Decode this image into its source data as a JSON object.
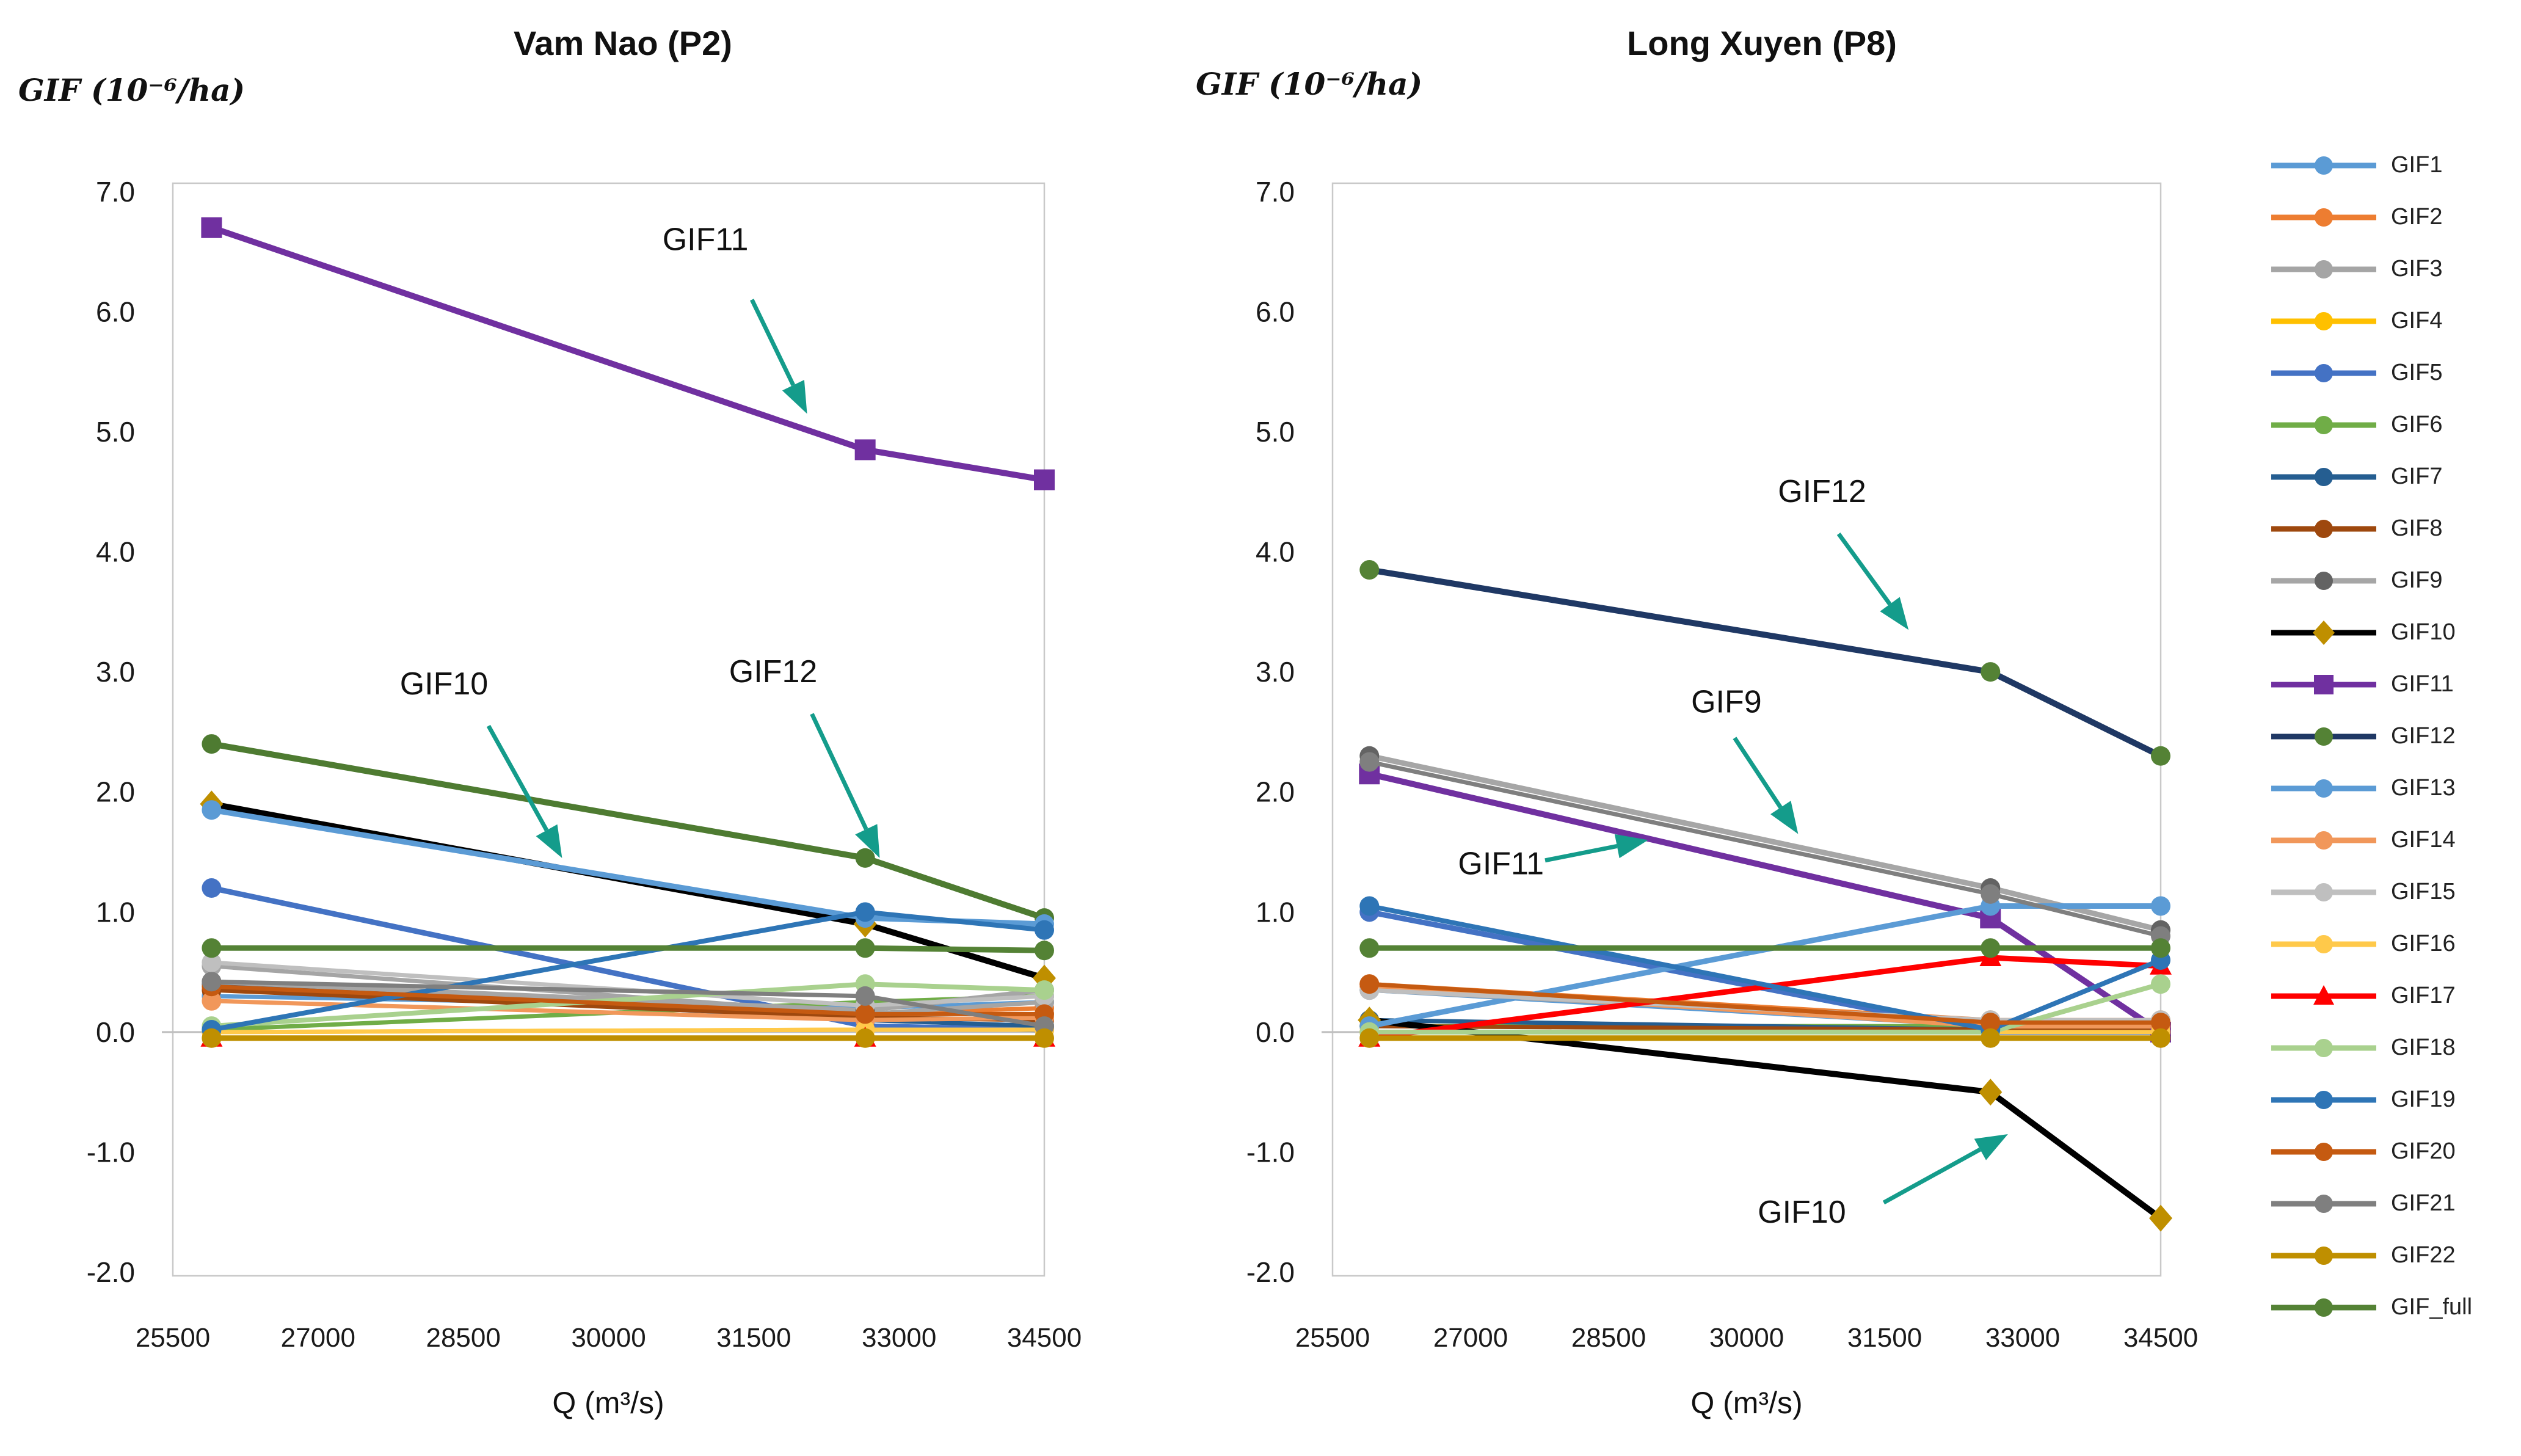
{
  "page": {
    "background": "#ffffff"
  },
  "annotation_color": "#149c8b",
  "legend": {
    "items": [
      {
        "label": "GIF1",
        "line": "#5B9BD5",
        "marker": "circle",
        "marker_color": "#5B9BD5"
      },
      {
        "label": "GIF2",
        "line": "#ED7D31",
        "marker": "circle",
        "marker_color": "#ED7D31"
      },
      {
        "label": "GIF3",
        "line": "#A5A5A5",
        "marker": "circle",
        "marker_color": "#A5A5A5"
      },
      {
        "label": "GIF4",
        "line": "#FFC000",
        "marker": "circle",
        "marker_color": "#FFC000"
      },
      {
        "label": "GIF5",
        "line": "#4472C4",
        "marker": "circle",
        "marker_color": "#4472C4"
      },
      {
        "label": "GIF6",
        "line": "#70AD47",
        "marker": "circle",
        "marker_color": "#70AD47"
      },
      {
        "label": "GIF7",
        "line": "#255E91",
        "marker": "circle",
        "marker_color": "#255E91"
      },
      {
        "label": "GIF8",
        "line": "#9E480E",
        "marker": "circle",
        "marker_color": "#9E480E"
      },
      {
        "label": "GIF9",
        "line": "#A6A6A6",
        "marker": "circle",
        "marker_color": "#636363"
      },
      {
        "label": "GIF10",
        "line": "#000000",
        "marker": "diamond",
        "marker_color": "#BF8F00"
      },
      {
        "label": "GIF11",
        "line": "#7030A0",
        "marker": "square",
        "marker_color": "#7030A0"
      },
      {
        "label": "GIF12",
        "line": "#1F3864",
        "marker": "circle",
        "marker_color": "#548235"
      },
      {
        "label": "GIF13",
        "line": "#5B9BD5",
        "marker": "circle",
        "marker_color": "#5B9BD5"
      },
      {
        "label": "GIF14",
        "line": "#F1975A",
        "marker": "circle",
        "marker_color": "#F1975A"
      },
      {
        "label": "GIF15",
        "line": "#BFBFBF",
        "marker": "circle",
        "marker_color": "#BFBFBF"
      },
      {
        "label": "GIF16",
        "line": "#FFC94A",
        "marker": "circle",
        "marker_color": "#FFC94A"
      },
      {
        "label": "GIF17",
        "line": "#FF0000",
        "marker": "triangle",
        "marker_color": "#FF0000"
      },
      {
        "label": "GIF18",
        "line": "#A9D18E",
        "marker": "circle",
        "marker_color": "#A9D18E"
      },
      {
        "label": "GIF19",
        "line": "#2E75B6",
        "marker": "circle",
        "marker_color": "#2E75B6"
      },
      {
        "label": "GIF20",
        "line": "#C55A11",
        "marker": "circle",
        "marker_color": "#C55A11"
      },
      {
        "label": "GIF21",
        "line": "#7F7F7F",
        "marker": "circle",
        "marker_color": "#7F7F7F"
      },
      {
        "label": "GIF22",
        "line": "#BF8F00",
        "marker": "circle",
        "marker_color": "#BF8F00"
      },
      {
        "label": "GIF_full",
        "line": "#548235",
        "marker": "circle",
        "marker_color": "#548235"
      }
    ]
  },
  "chart_data": [
    {
      "type": "line",
      "title": "Vam Nao (P2)",
      "ylabel_unit": "GIF (10⁻⁶/ha)",
      "xlabel": "Q (m³/s)",
      "xlim": [
        25500,
        34500
      ],
      "ylim": [
        -2.0,
        7.0
      ],
      "x_ticks": [
        25500,
        27000,
        28500,
        30000,
        31500,
        33000,
        34500
      ],
      "y_ticks": [
        "7.0",
        "6.0",
        "5.0",
        "4.0",
        "3.0",
        "2.0",
        "1.0",
        "0.0",
        "-1.0",
        "-2.0"
      ],
      "x": [
        25900,
        32650,
        34500
      ],
      "series": [
        {
          "name": "GIF1",
          "color": "#5B9BD5",
          "marker": "circle",
          "marker_color": "#5B9BD5",
          "width": 7,
          "values": [
            0.3,
            0.2,
            0.25
          ]
        },
        {
          "name": "GIF2",
          "color": "#ED7D31",
          "marker": "circle",
          "marker_color": "#ED7D31",
          "width": 7,
          "values": [
            0.4,
            0.15,
            0.2
          ]
        },
        {
          "name": "GIF3",
          "color": "#A5A5A5",
          "marker": "circle",
          "marker_color": "#A5A5A5",
          "width": 7,
          "values": [
            0.55,
            0.15,
            0.25
          ]
        },
        {
          "name": "GIF4",
          "color": "#FFC000",
          "marker": "circle",
          "marker_color": "#FFC000",
          "width": 7,
          "values": [
            0.0,
            0.02,
            0.02
          ]
        },
        {
          "name": "GIF5",
          "color": "#4472C4",
          "marker": "circle",
          "marker_color": "#4472C4",
          "width": 9,
          "values": [
            1.2,
            0.05,
            0.02
          ]
        },
        {
          "name": "GIF6",
          "color": "#70AD47",
          "marker": "circle",
          "marker_color": "#70AD47",
          "width": 7,
          "values": [
            0.02,
            0.25,
            0.3
          ]
        },
        {
          "name": "GIF7",
          "color": "#255E91",
          "marker": "circle",
          "marker_color": "#255E91",
          "width": 7,
          "values": [
            0.4,
            0.1,
            0.05
          ]
        },
        {
          "name": "GIF8",
          "color": "#9E480E",
          "marker": "circle",
          "marker_color": "#9E480E",
          "width": 7,
          "values": [
            0.35,
            0.12,
            0.1
          ]
        },
        {
          "name": "GIF9",
          "color": "#A6A6A6",
          "marker": "circle",
          "marker_color": "#636363",
          "width": 8,
          "values": [
            0.42,
            0.18,
            0.35
          ]
        },
        {
          "name": "GIF10",
          "color": "#000000",
          "marker": "diamond",
          "marker_color": "#BF8F00",
          "width": 10,
          "values": [
            1.9,
            0.9,
            0.45
          ]
        },
        {
          "name": "GIF11",
          "color": "#7030A0",
          "marker": "square",
          "marker_color": "#7030A0",
          "width": 10,
          "values": [
            6.7,
            4.85,
            4.6
          ]
        },
        {
          "name": "GIF12",
          "color": "#4E7B31",
          "marker": "circle",
          "marker_color": "#4E7B31",
          "width": 10,
          "values": [
            2.4,
            1.45,
            0.95
          ]
        },
        {
          "name": "GIF13",
          "color": "#5B9BD5",
          "marker": "circle",
          "marker_color": "#5B9BD5",
          "width": 9,
          "values": [
            1.85,
            0.95,
            0.9
          ]
        },
        {
          "name": "GIF14",
          "color": "#F1975A",
          "marker": "circle",
          "marker_color": "#F1975A",
          "width": 7,
          "values": [
            0.26,
            0.1,
            0.12
          ]
        },
        {
          "name": "GIF15",
          "color": "#BFBFBF",
          "marker": "circle",
          "marker_color": "#BFBFBF",
          "width": 7,
          "values": [
            0.58,
            0.22,
            0.3
          ]
        },
        {
          "name": "GIF16",
          "color": "#FFC94A",
          "marker": "circle",
          "marker_color": "#FFC94A",
          "width": 7,
          "values": [
            0.0,
            0.02,
            0.02
          ]
        },
        {
          "name": "GIF17",
          "color": "#FF0000",
          "marker": "triangle",
          "marker_color": "#FF0000",
          "width": 7,
          "values": [
            -0.05,
            -0.05,
            -0.05
          ]
        },
        {
          "name": "GIF18",
          "color": "#A9D18E",
          "marker": "circle",
          "marker_color": "#A9D18E",
          "width": 8,
          "values": [
            0.05,
            0.4,
            0.35
          ]
        },
        {
          "name": "GIF19",
          "color": "#2E75B6",
          "marker": "circle",
          "marker_color": "#2E75B6",
          "width": 8,
          "values": [
            0.02,
            1.0,
            0.85
          ]
        },
        {
          "name": "GIF20",
          "color": "#C55A11",
          "marker": "circle",
          "marker_color": "#C55A11",
          "width": 7,
          "values": [
            0.38,
            0.15,
            0.15
          ]
        },
        {
          "name": "GIF21",
          "color": "#7F7F7F",
          "marker": "circle",
          "marker_color": "#7F7F7F",
          "width": 7,
          "values": [
            0.42,
            0.3,
            0.05
          ]
        },
        {
          "name": "GIF22",
          "color": "#BF8F00",
          "marker": "circle",
          "marker_color": "#BF8F00",
          "width": 9,
          "values": [
            -0.05,
            -0.05,
            -0.05
          ]
        },
        {
          "name": "GIF_full",
          "color": "#548235",
          "marker": "circle",
          "marker_color": "#548235",
          "width": 9,
          "values": [
            0.7,
            0.7,
            0.68
          ]
        }
      ],
      "annotations": [
        {
          "text": "GIF11",
          "x": 31000,
          "y": 6.6,
          "arrow": {
            "x1": 31480,
            "y1": 6.1,
            "x2": 32050,
            "y2": 5.15
          }
        },
        {
          "text": "GIF10",
          "x": 28300,
          "y": 2.9,
          "arrow": {
            "x1": 28760,
            "y1": 2.55,
            "x2": 29520,
            "y2": 1.45
          }
        },
        {
          "text": "GIF12",
          "x": 31700,
          "y": 3.0,
          "arrow": {
            "x1": 32100,
            "y1": 2.65,
            "x2": 32800,
            "y2": 1.45
          }
        }
      ]
    },
    {
      "type": "line",
      "title": "Long Xuyen (P8)",
      "ylabel_unit": "GIF (10⁻⁶/ha)",
      "xlabel": "Q (m³/s)",
      "xlim": [
        25500,
        34500
      ],
      "ylim": [
        -2.0,
        7.0
      ],
      "x_ticks": [
        25500,
        27000,
        28500,
        30000,
        31500,
        33000,
        34500
      ],
      "y_ticks": [
        "7.0",
        "6.0",
        "5.0",
        "4.0",
        "3.0",
        "2.0",
        "1.0",
        "0.0",
        "-1.0",
        "-2.0"
      ],
      "x": [
        25900,
        32650,
        34500
      ],
      "series": [
        {
          "name": "GIF1",
          "color": "#5B9BD5",
          "marker": "circle",
          "marker_color": "#5B9BD5",
          "width": 7,
          "values": [
            0.35,
            0.05,
            0.05
          ]
        },
        {
          "name": "GIF2",
          "color": "#ED7D31",
          "marker": "circle",
          "marker_color": "#ED7D31",
          "width": 7,
          "values": [
            0.4,
            0.1,
            0.1
          ]
        },
        {
          "name": "GIF3",
          "color": "#A5A5A5",
          "marker": "circle",
          "marker_color": "#A5A5A5",
          "width": 7,
          "values": [
            0.35,
            0.08,
            0.08
          ]
        },
        {
          "name": "GIF4",
          "color": "#FFC000",
          "marker": "circle",
          "marker_color": "#FFC000",
          "width": 7,
          "values": [
            0.0,
            0.0,
            0.0
          ]
        },
        {
          "name": "GIF5",
          "color": "#4472C4",
          "marker": "circle",
          "marker_color": "#4472C4",
          "width": 9,
          "values": [
            1.0,
            0.0,
            0.0
          ]
        },
        {
          "name": "GIF6",
          "color": "#70AD47",
          "marker": "circle",
          "marker_color": "#70AD47",
          "width": 7,
          "values": [
            0.05,
            0.05,
            0.05
          ]
        },
        {
          "name": "GIF7",
          "color": "#255E91",
          "marker": "circle",
          "marker_color": "#255E91",
          "width": 7,
          "values": [
            0.1,
            0.02,
            0.02
          ]
        },
        {
          "name": "GIF8",
          "color": "#9E480E",
          "marker": "circle",
          "marker_color": "#9E480E",
          "width": 7,
          "values": [
            0.05,
            0.02,
            0.02
          ]
        },
        {
          "name": "GIF9",
          "color": "#A6A6A6",
          "marker": "circle",
          "marker_color": "#636363",
          "width": 9,
          "values": [
            2.3,
            1.2,
            0.85
          ]
        },
        {
          "name": "GIF10",
          "color": "#000000",
          "marker": "diamond",
          "marker_color": "#BF8F00",
          "width": 10,
          "values": [
            0.1,
            -0.5,
            -1.55
          ]
        },
        {
          "name": "GIF11",
          "color": "#7030A0",
          "marker": "square",
          "marker_color": "#7030A0",
          "width": 10,
          "values": [
            2.15,
            0.95,
            0.0
          ]
        },
        {
          "name": "GIF12",
          "color": "#1F3864",
          "marker": "circle",
          "marker_color": "#548235",
          "width": 10,
          "values": [
            3.85,
            3.0,
            2.3
          ]
        },
        {
          "name": "GIF13",
          "color": "#5B9BD5",
          "marker": "circle",
          "marker_color": "#5B9BD5",
          "width": 9,
          "values": [
            0.05,
            1.05,
            1.05
          ]
        },
        {
          "name": "GIF14",
          "color": "#F1975A",
          "marker": "circle",
          "marker_color": "#F1975A",
          "width": 8,
          "values": [
            0.38,
            0.05,
            0.05
          ]
        },
        {
          "name": "GIF15",
          "color": "#BFBFBF",
          "marker": "circle",
          "marker_color": "#BFBFBF",
          "width": 7,
          "values": [
            0.35,
            0.1,
            0.1
          ]
        },
        {
          "name": "GIF16",
          "color": "#FFC94A",
          "marker": "circle",
          "marker_color": "#FFC94A",
          "width": 7,
          "values": [
            0.0,
            0.0,
            0.0
          ]
        },
        {
          "name": "GIF17",
          "color": "#FF0000",
          "marker": "triangle",
          "marker_color": "#FF0000",
          "width": 9,
          "values": [
            -0.05,
            0.62,
            0.55
          ]
        },
        {
          "name": "GIF18",
          "color": "#A9D18E",
          "marker": "circle",
          "marker_color": "#A9D18E",
          "width": 8,
          "values": [
            0.0,
            0.0,
            0.4
          ]
        },
        {
          "name": "GIF19",
          "color": "#2E75B6",
          "marker": "circle",
          "marker_color": "#2E75B6",
          "width": 8,
          "values": [
            1.05,
            0.02,
            0.6
          ]
        },
        {
          "name": "GIF20",
          "color": "#C55A11",
          "marker": "circle",
          "marker_color": "#C55A11",
          "width": 7,
          "values": [
            0.4,
            0.08,
            0.08
          ]
        },
        {
          "name": "GIF21",
          "color": "#7F7F7F",
          "marker": "circle",
          "marker_color": "#7F7F7F",
          "width": 7,
          "values": [
            2.25,
            1.15,
            0.8
          ]
        },
        {
          "name": "GIF22",
          "color": "#BF8F00",
          "marker": "circle",
          "marker_color": "#BF8F00",
          "width": 9,
          "values": [
            -0.05,
            -0.05,
            -0.05
          ]
        },
        {
          "name": "GIF_full",
          "color": "#548235",
          "marker": "circle",
          "marker_color": "#548235",
          "width": 9,
          "values": [
            0.7,
            0.7,
            0.7
          ]
        }
      ],
      "annotations": [
        {
          "text": "GIF12",
          "x": 30820,
          "y": 4.5,
          "arrow": {
            "x1": 31000,
            "y1": 4.15,
            "x2": 31760,
            "y2": 3.35
          }
        },
        {
          "text": "GIF9",
          "x": 29780,
          "y": 2.75,
          "arrow": {
            "x1": 29870,
            "y1": 2.45,
            "x2": 30560,
            "y2": 1.65
          }
        },
        {
          "text": "GIF11",
          "x": 27330,
          "y": 1.4,
          "arrow": {
            "x1": 27810,
            "y1": 1.43,
            "x2": 28930,
            "y2": 1.6
          }
        },
        {
          "text": "GIF10",
          "x": 30600,
          "y": -1.5,
          "arrow": {
            "x1": 31490,
            "y1": -1.42,
            "x2": 32840,
            "y2": -0.85
          }
        }
      ]
    }
  ]
}
